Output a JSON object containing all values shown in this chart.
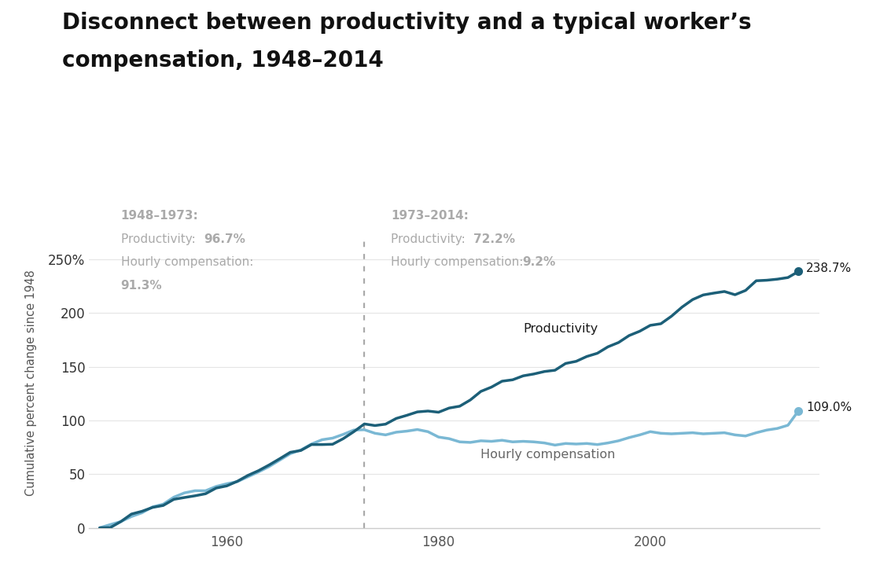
{
  "title_line1": "Disconnect between productivity and a typical worker’s",
  "title_line2": "compensation, 1948–2014",
  "ylabel": "Cumulative percent change since 1948",
  "bg_color": "#ffffff",
  "prod_color": "#1c5f78",
  "comp_color": "#7ab8d4",
  "text_dark": "#1a1a1a",
  "text_gray": "#aaaaaa",
  "grid_color": "#e5e5e5",
  "spine_color": "#cccccc",
  "divider_year": 1973,
  "years": [
    1948,
    1949,
    1950,
    1951,
    1952,
    1953,
    1954,
    1955,
    1956,
    1957,
    1958,
    1959,
    1960,
    1961,
    1962,
    1963,
    1964,
    1965,
    1966,
    1967,
    1968,
    1969,
    1970,
    1971,
    1972,
    1973,
    1974,
    1975,
    1976,
    1977,
    1978,
    1979,
    1980,
    1981,
    1982,
    1983,
    1984,
    1985,
    1986,
    1987,
    1988,
    1989,
    1990,
    1991,
    1992,
    1993,
    1994,
    1995,
    1996,
    1997,
    1998,
    1999,
    2000,
    2001,
    2002,
    2003,
    2004,
    2005,
    2006,
    2007,
    2008,
    2009,
    2010,
    2011,
    2012,
    2013,
    2014
  ],
  "productivity": [
    0.0,
    0.2,
    5.8,
    12.8,
    15.4,
    19.0,
    20.8,
    26.5,
    28.2,
    29.8,
    31.7,
    37.0,
    39.0,
    43.3,
    48.8,
    53.2,
    58.5,
    64.3,
    70.3,
    72.0,
    77.5,
    77.5,
    77.8,
    83.0,
    89.5,
    96.7,
    95.2,
    96.5,
    101.8,
    104.7,
    107.9,
    108.7,
    107.6,
    111.5,
    113.2,
    119.0,
    127.0,
    131.0,
    136.5,
    137.8,
    141.5,
    143.2,
    145.5,
    146.7,
    153.0,
    155.0,
    159.5,
    162.5,
    168.5,
    172.5,
    179.0,
    183.0,
    188.5,
    190.0,
    197.0,
    205.5,
    212.5,
    216.8,
    218.5,
    220.0,
    217.0,
    221.0,
    230.0,
    230.5,
    231.5,
    233.0,
    238.7
  ],
  "compensation": [
    0.0,
    3.0,
    5.8,
    10.5,
    14.0,
    19.5,
    22.0,
    28.5,
    32.5,
    34.5,
    34.5,
    38.5,
    41.0,
    43.0,
    47.5,
    52.0,
    57.0,
    63.0,
    69.0,
    72.5,
    78.0,
    82.0,
    83.5,
    87.0,
    91.0,
    91.3,
    88.0,
    86.5,
    89.0,
    90.0,
    91.5,
    89.5,
    84.5,
    83.0,
    80.0,
    79.5,
    81.0,
    80.5,
    81.5,
    80.0,
    80.5,
    80.0,
    79.0,
    77.0,
    78.5,
    78.0,
    78.5,
    77.5,
    79.0,
    81.0,
    84.0,
    86.5,
    89.5,
    88.0,
    87.5,
    88.0,
    88.5,
    87.5,
    88.0,
    88.5,
    86.5,
    85.5,
    88.5,
    91.0,
    92.5,
    95.5,
    109.0
  ],
  "ylim": [
    0,
    270
  ],
  "yticks": [
    0,
    50,
    100,
    150,
    200,
    250
  ],
  "xlim_left": 1947,
  "xlim_right": 2016,
  "xticks": [
    1960,
    1980,
    2000
  ],
  "prod_final_val": 238.7,
  "comp_final_val": 109.0,
  "final_year": 2014
}
